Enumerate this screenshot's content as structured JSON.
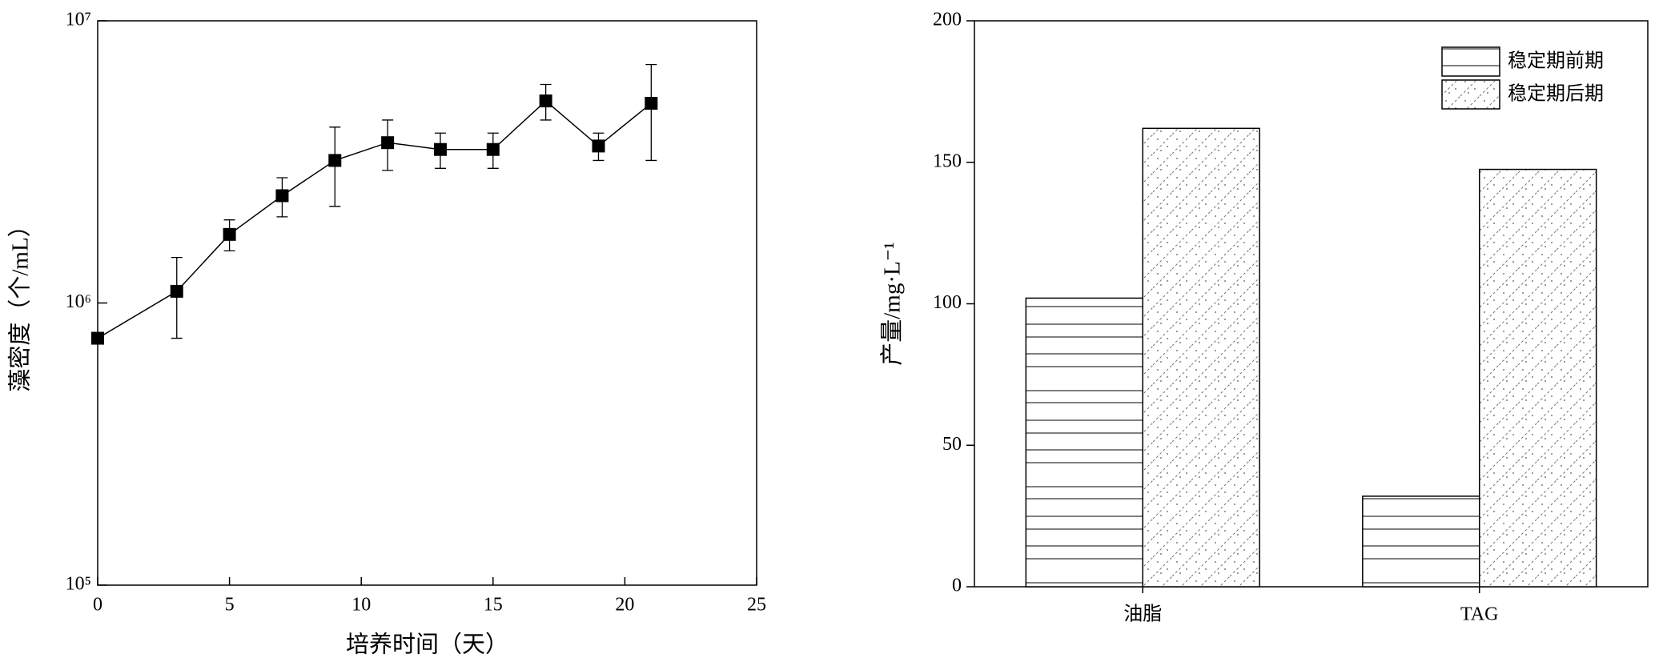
{
  "chart_data": [
    {
      "type": "line",
      "xlabel": "培养时间（天）",
      "ylabel": "藻密度（个/mL）",
      "x": [
        0,
        3,
        5,
        7,
        9,
        11,
        13,
        15,
        17,
        19,
        21
      ],
      "values": [
        750000,
        1100000,
        1750000,
        2400000,
        3200000,
        3700000,
        3500000,
        3500000,
        5200000,
        3600000,
        5100000
      ],
      "errors": [
        0,
        350000,
        220000,
        380000,
        1000000,
        750000,
        500000,
        500000,
        750000,
        400000,
        1900000
      ],
      "color": "#000000",
      "xlim": [
        0,
        25
      ],
      "xticks": [
        0,
        5,
        10,
        15,
        20,
        25
      ],
      "ylim": [
        100000,
        10000000
      ],
      "yticks": [
        {
          "value": 100000,
          "label": "10⁵"
        },
        {
          "value": 1000000,
          "label": "10⁶"
        },
        {
          "value": 10000000,
          "label": "10⁷"
        }
      ],
      "log_scale_y": true
    },
    {
      "type": "bar",
      "ylabel": "产量/mg·L⁻¹",
      "categories": [
        "油脂",
        "TAG"
      ],
      "series": [
        {
          "name": "稳定期前期",
          "pattern": "horizontal-lines",
          "color": "#ffffff",
          "values": [
            102,
            32
          ]
        },
        {
          "name": "稳定期后期",
          "pattern": "dotted-diagonal",
          "color": "#ffffff",
          "values": [
            162,
            147.5
          ]
        }
      ],
      "ylim": [
        0,
        200
      ],
      "yticks": [
        0,
        50,
        100,
        150,
        200
      ],
      "legend": "upper right"
    }
  ]
}
